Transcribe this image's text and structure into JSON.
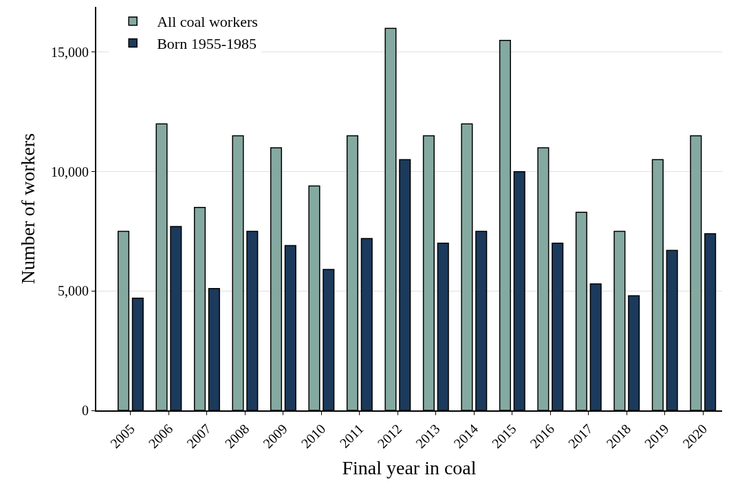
{
  "chart_data": {
    "type": "bar",
    "xlabel": "Final year in coal",
    "ylabel": "Number of workers",
    "categories": [
      "2005",
      "2006",
      "2007",
      "2008",
      "2009",
      "2010",
      "2011",
      "2012",
      "2013",
      "2014",
      "2015",
      "2016",
      "2017",
      "2018",
      "2019",
      "2020"
    ],
    "series": [
      {
        "name": "All coal workers",
        "color": "#84a9a0",
        "values": [
          7500,
          12000,
          8500,
          11500,
          11000,
          9400,
          11500,
          16000,
          11500,
          12000,
          15500,
          11000,
          8300,
          7500,
          10500,
          11500
        ]
      },
      {
        "name": "Born 1955-1985",
        "color": "#1b3a5c",
        "values": [
          4700,
          7700,
          5100,
          7500,
          6900,
          5900,
          7200,
          10500,
          7000,
          7500,
          10000,
          7000,
          5300,
          4800,
          6700,
          7400
        ]
      }
    ],
    "ylim": [
      0,
      16900
    ],
    "yticks": [
      0,
      {
        "value": 5000,
        "label": "5,000"
      },
      {
        "value": 10000,
        "label": "10,000"
      },
      {
        "value": 15000,
        "label": "15,000"
      }
    ],
    "grid": "y",
    "legend": "top left"
  }
}
